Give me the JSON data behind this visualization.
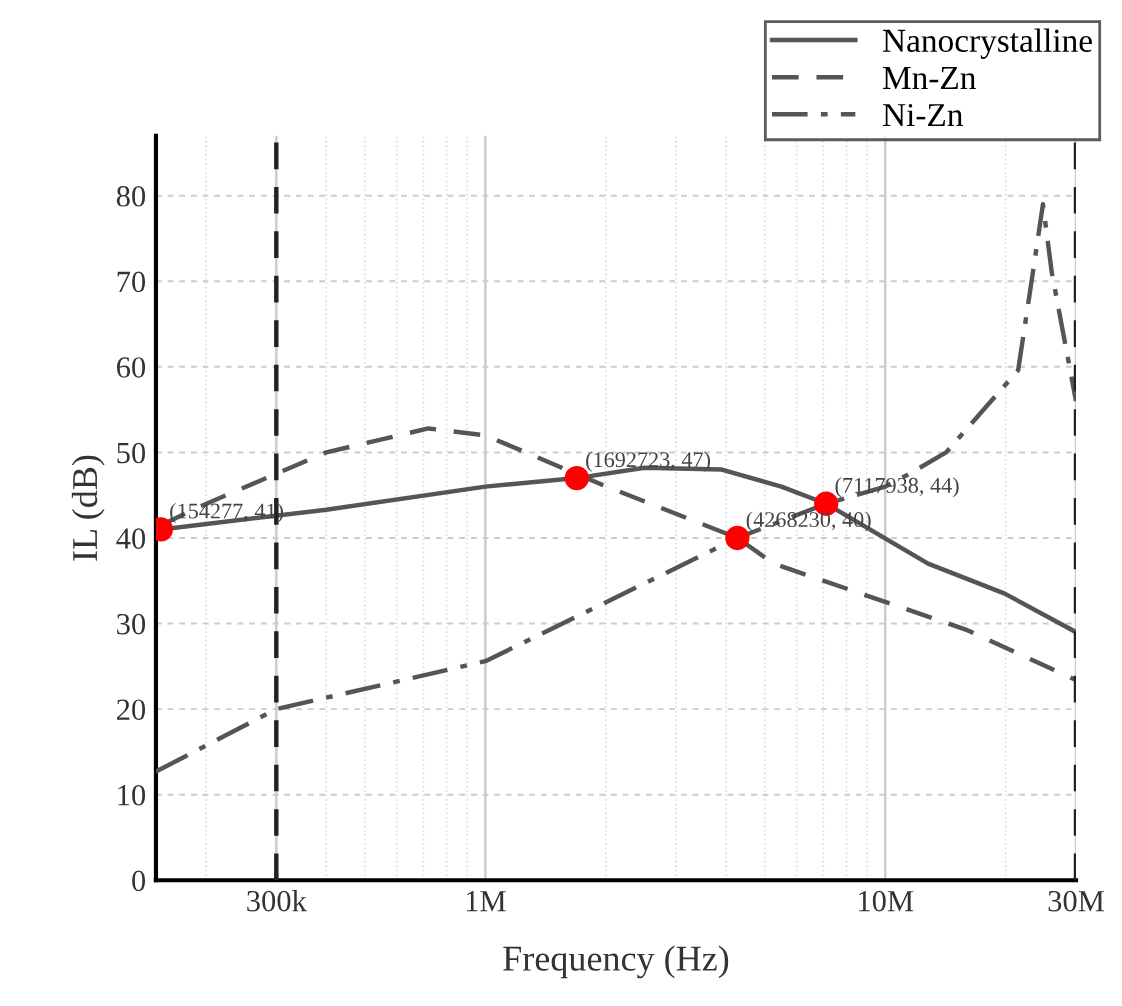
{
  "chart_data": {
    "type": "line",
    "xlabel": "Frequency (Hz)",
    "ylabel": "IL (dB)",
    "log": "x",
    "xlim": [
      150000,
      30000000
    ],
    "ylim": [
      0,
      87
    ],
    "xticks": [
      {
        "value": 300000,
        "label": "300k"
      },
      {
        "value": 1000000,
        "label": "1M"
      },
      {
        "value": 10000000,
        "label": "10M"
      },
      {
        "value": 30000000,
        "label": "30M"
      }
    ],
    "yticks": [
      0,
      10,
      20,
      30,
      40,
      50,
      60,
      70,
      80
    ],
    "grid": true,
    "legend": "top right",
    "series": [
      {
        "name": "Nanocrystalline",
        "color": "#555555",
        "line_style": "solid",
        "x": [
          154277,
          400000,
          1000000,
          1692723,
          2500000,
          3900000,
          5500000,
          7117938,
          12800000,
          19900000,
          30000000
        ],
        "values": [
          41,
          43.3,
          46,
          47,
          48.2,
          48,
          46,
          44,
          37,
          33.5,
          29
        ]
      },
      {
        "name": "Mn-Zn",
        "color": "#555555",
        "line_style": "dashed",
        "x": [
          154277,
          196000,
          400000,
          720000,
          1000000,
          1940000,
          4268230,
          5260000,
          15900000,
          30000000
        ],
        "values": [
          41.5,
          43.8,
          50,
          52.8,
          52,
          46.3,
          40,
          37,
          29.3,
          23.4
        ]
      },
      {
        "name": "Ni-Zn",
        "color": "#555555",
        "line_style": "dashdot",
        "x": [
          150000,
          300000,
          1000000,
          4268230,
          7117938,
          10000000,
          11400000,
          14200000,
          21500000,
          23400000,
          24800000,
          26100000,
          30000000
        ],
        "values": [
          12.7,
          20,
          25.6,
          40,
          44,
          46,
          47.4,
          50,
          59.6,
          71,
          79,
          71,
          56
        ]
      },
      {
        "type": "scatter",
        "color": "#ff0000",
        "marker": "circle",
        "x": [
          154277,
          1692723,
          4268230,
          7117938
        ],
        "values": [
          41,
          47,
          40,
          44
        ]
      }
    ],
    "ref_lines": [
      {
        "axis": "x",
        "value": 300000,
        "color": "#222222",
        "line_style": "dashed"
      },
      {
        "axis": "x",
        "value": 30000000,
        "color": "#222222",
        "line_style": "dashed"
      }
    ],
    "annotations": [
      {
        "text": "(154277, 41)",
        "x": 154277,
        "y": 41
      },
      {
        "text": "(1692723, 47)",
        "x": 1692723,
        "y": 47
      },
      {
        "text": "(4268230, 40)",
        "x": 4268230,
        "y": 40
      },
      {
        "text": "(7117938, 44)",
        "x": 7117938,
        "y": 44
      }
    ]
  }
}
